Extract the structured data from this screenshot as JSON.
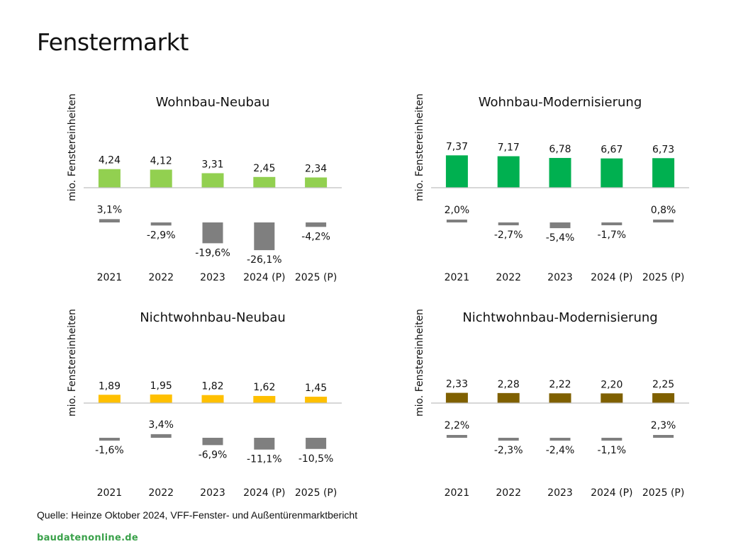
{
  "title": "Fenstermarkt",
  "source": "Quelle: Heinze Oktober 2024, VFF-Fenster- und Außentürenmarktbericht",
  "brand": "baudatenonline.de",
  "colors": {
    "wohnbau_neubau": "#92d050",
    "wohnbau_modernisierung": "#00b050",
    "nichtwohnbau_neubau": "#ffc000",
    "nichtwohnbau_modernisierung": "#7f6000",
    "change": "#7f7f7f",
    "axis": "#bfbfbf"
  },
  "chart_data": [
    {
      "type": "bar",
      "title": "Wohnbau-Neubau",
      "ylabel": "mio. Fenstereinheiten",
      "categories": [
        "2021",
        "2022",
        "2023",
        "2024 (P)",
        "2025 (P)"
      ],
      "series": [
        {
          "values": [
            4.24,
            4.12,
            3.31,
            2.45,
            2.34
          ],
          "labels": [
            "4,24",
            "4,12",
            "3,31",
            "2,45",
            "2,34"
          ]
        },
        {
          "values": [
            3.1,
            -2.9,
            -19.6,
            -26.1,
            -4.2
          ],
          "labels": [
            "3,1%",
            "-2,9%",
            "-19,6%",
            "-26,1%",
            "-4,2%"
          ]
        }
      ],
      "color_key": "wohnbau_neubau"
    },
    {
      "type": "bar",
      "title": "Wohnbau-Modernisierung",
      "ylabel": "mio. Fenstereinheiten",
      "categories": [
        "2021",
        "2022",
        "2023",
        "2024 (P)",
        "2025 (P)"
      ],
      "series": [
        {
          "values": [
            7.37,
            7.17,
            6.78,
            6.67,
            6.73
          ],
          "labels": [
            "7,37",
            "7,17",
            "6,78",
            "6,67",
            "6,73"
          ]
        },
        {
          "values": [
            2.0,
            -2.7,
            -5.4,
            -1.7,
            0.8
          ],
          "labels": [
            "2,0%",
            "-2,7%",
            "-5,4%",
            "-1,7%",
            "0,8%"
          ]
        }
      ],
      "color_key": "wohnbau_modernisierung"
    },
    {
      "type": "bar",
      "title": "Nichtwohnbau-Neubau",
      "ylabel": "mio. Fenstereinheiten",
      "categories": [
        "2021",
        "2022",
        "2023",
        "2024 (P)",
        "2025 (P)"
      ],
      "series": [
        {
          "values": [
            1.89,
            1.95,
            1.82,
            1.62,
            1.45
          ],
          "labels": [
            "1,89",
            "1,95",
            "1,82",
            "1,62",
            "1,45"
          ]
        },
        {
          "values": [
            -1.6,
            3.4,
            -6.9,
            -11.1,
            -10.5
          ],
          "labels": [
            "-1,6%",
            "3,4%",
            "-6,9%",
            "-11,1%",
            "-10,5%"
          ]
        }
      ],
      "color_key": "nichtwohnbau_neubau"
    },
    {
      "type": "bar",
      "title": "Nichtwohnbau-Modernisierung",
      "ylabel": "mio. Fenstereinheiten",
      "categories": [
        "2021",
        "2022",
        "2023",
        "2024 (P)",
        "2025 (P)"
      ],
      "series": [
        {
          "values": [
            2.33,
            2.28,
            2.22,
            2.2,
            2.25
          ],
          "labels": [
            "2,33",
            "2,28",
            "2,22",
            "2,20",
            "2,25"
          ]
        },
        {
          "values": [
            2.2,
            -2.3,
            -2.4,
            -1.1,
            2.3
          ],
          "labels": [
            "2,2%",
            "-2,3%",
            "-2,4%",
            "-1,1%",
            "2,3%"
          ]
        }
      ],
      "color_key": "nichtwohnbau_modernisierung"
    }
  ]
}
